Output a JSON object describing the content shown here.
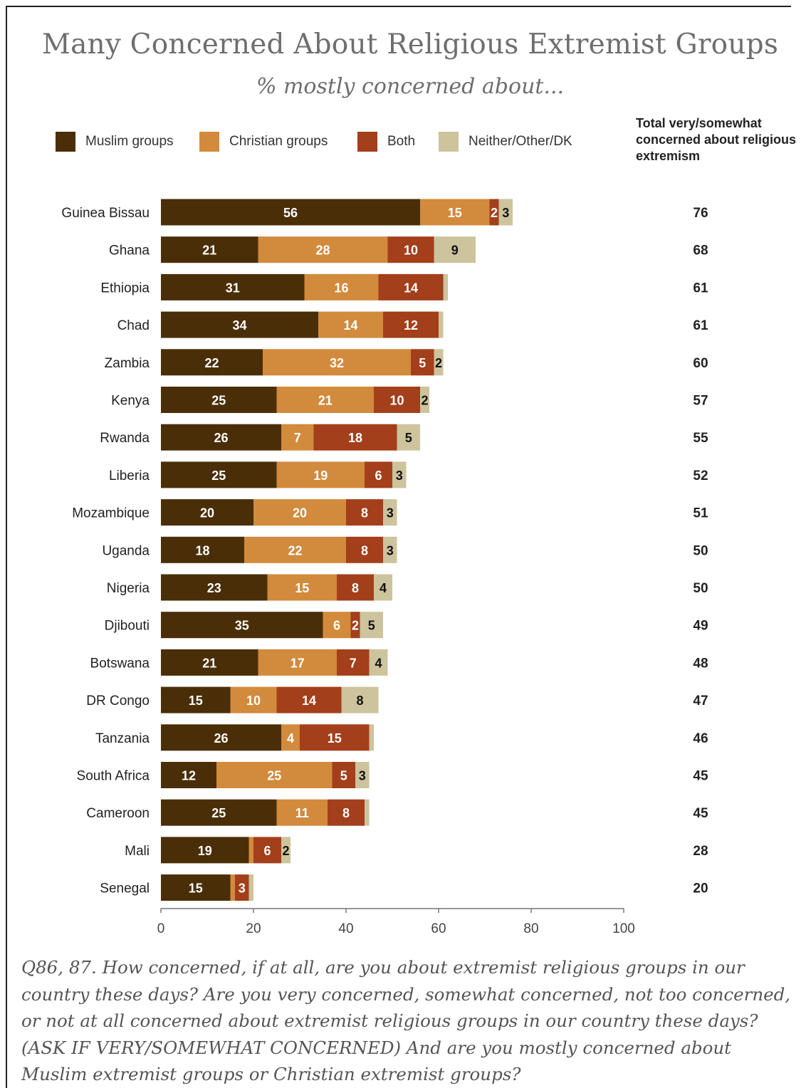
{
  "title": "Many Concerned About Religious Extremist Groups",
  "subtitle": "% mostly concerned about...",
  "total_header": "Total very/somewhat concerned about religious extremism",
  "question": "Q86, 87. How concerned, if at all, are you about extremist religious groups in our country these days? Are you very concerned, somewhat concerned, not too concerned, or not at all concerned about extremist religious groups in our country these days? (ASK IF VERY/SOMEWHAT CONCERNED) And are you mostly concerned about Muslim extremist groups or Christian extremist groups?",
  "legend": [
    {
      "label": "Muslim groups",
      "color": "#4a2e07"
    },
    {
      "label": "Christian groups",
      "color": "#d28a3c"
    },
    {
      "label": "Both",
      "color": "#a33f1b"
    },
    {
      "label": "Neither/Other/DK",
      "color": "#cdc39d"
    }
  ],
  "chart_data": {
    "type": "bar",
    "orientation": "horizontal",
    "stacked": true,
    "title": "Many Concerned About Religious Extremist Groups",
    "subtitle": "% mostly concerned about...",
    "categories": [
      "Guinea Bissau",
      "Ghana",
      "Ethiopia",
      "Chad",
      "Zambia",
      "Kenya",
      "Rwanda",
      "Liberia",
      "Mozambique",
      "Uganda",
      "Nigeria",
      "Djibouti",
      "Botswana",
      "DR Congo",
      "Tanzania",
      "South Africa",
      "Cameroon",
      "Mali",
      "Senegal"
    ],
    "series": [
      {
        "name": "Muslim groups",
        "color": "#4a2e07",
        "values": [
          56,
          21,
          31,
          34,
          22,
          25,
          26,
          25,
          20,
          18,
          23,
          35,
          21,
          15,
          26,
          12,
          25,
          19,
          15
        ],
        "labels": [
          "56",
          "21",
          "31",
          "34",
          "22",
          "25",
          "26",
          "25",
          "20",
          "18",
          "23",
          "35",
          "21",
          "15",
          "26",
          "12",
          "25",
          "19",
          "15"
        ]
      },
      {
        "name": "Christian groups",
        "color": "#d28a3c",
        "values": [
          15,
          28,
          16,
          14,
          32,
          21,
          7,
          19,
          20,
          22,
          15,
          6,
          17,
          10,
          4,
          25,
          11,
          1,
          1
        ],
        "labels": [
          "15",
          "28",
          "16",
          "14",
          "32",
          "21",
          "7",
          "19",
          "20",
          "22",
          "15",
          "6",
          "17",
          "10",
          "4",
          "25",
          "11",
          "",
          ""
        ]
      },
      {
        "name": "Both",
        "color": "#a33f1b",
        "values": [
          2,
          10,
          14,
          12,
          5,
          10,
          18,
          6,
          8,
          8,
          8,
          2,
          7,
          14,
          15,
          5,
          8,
          6,
          3
        ],
        "labels": [
          "2",
          "10",
          "14",
          "12",
          "5",
          "10",
          "18",
          "6",
          "8",
          "8",
          "8",
          "2",
          "7",
          "14",
          "15",
          "5",
          "8",
          "6",
          "3"
        ]
      },
      {
        "name": "Neither/Other/DK",
        "color": "#cdc39d",
        "values": [
          3,
          9,
          1,
          1,
          2,
          2,
          5,
          3,
          3,
          3,
          4,
          5,
          4,
          8,
          1,
          3,
          1,
          2,
          1
        ],
        "labels": [
          "3",
          "9",
          "",
          "",
          "2",
          "2",
          "5",
          "3",
          "3",
          "3",
          "4",
          "5",
          "4",
          "8",
          "",
          "3",
          "",
          "2",
          ""
        ]
      }
    ],
    "totals": [
      "76",
      "68",
      "61",
      "61",
      "60",
      "57",
      "55",
      "52",
      "51",
      "50",
      "50",
      "49",
      "48",
      "47",
      "46",
      "45",
      "45",
      "28",
      "20"
    ],
    "xlim": [
      0,
      100
    ],
    "xticks": [
      0,
      20,
      40,
      60,
      80,
      100
    ],
    "grid": false
  }
}
